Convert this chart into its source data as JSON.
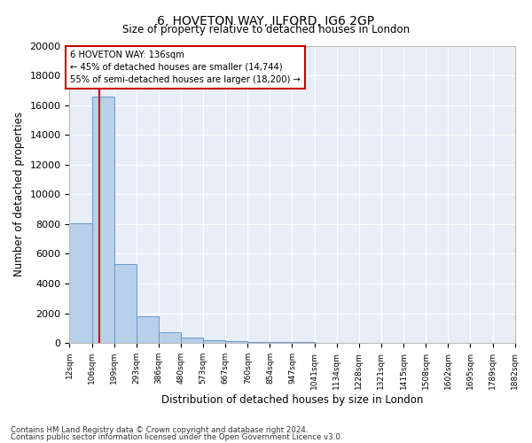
{
  "title": "6, HOVETON WAY, ILFORD, IG6 2GP",
  "subtitle": "Size of property relative to detached houses in London",
  "xlabel": "Distribution of detached houses by size in London",
  "ylabel": "Number of detached properties",
  "bar_edges": [
    12,
    106,
    199,
    293,
    386,
    480,
    573,
    667,
    760,
    854,
    947,
    1041,
    1134,
    1228,
    1321,
    1415,
    1508,
    1602,
    1695,
    1789,
    1882
  ],
  "bar_heights": [
    8050,
    16550,
    5300,
    1800,
    700,
    350,
    200,
    120,
    80,
    55,
    40,
    30,
    22,
    18,
    14,
    11,
    9,
    7,
    6,
    5
  ],
  "bar_color": "#b8d0ea",
  "bar_edge_color": "#6699cc",
  "red_line_x": 136,
  "annotation_title": "6 HOVETON WAY: 136sqm",
  "annotation_line1": "← 45% of detached houses are smaller (14,744)",
  "annotation_line2": "55% of semi-detached houses are larger (18,200) →",
  "annotation_box_color": "#ffffff",
  "annotation_box_edge": "#cc0000",
  "red_line_color": "#cc0000",
  "ylim": [
    0,
    20000
  ],
  "yticks": [
    0,
    2000,
    4000,
    6000,
    8000,
    10000,
    12000,
    14000,
    16000,
    18000,
    20000
  ],
  "background_color": "#ffffff",
  "plot_bg_color": "#e8eef8",
  "grid_color": "#ffffff",
  "footer_line1": "Contains HM Land Registry data © Crown copyright and database right 2024.",
  "footer_line2": "Contains public sector information licensed under the Open Government Licence v3.0."
}
